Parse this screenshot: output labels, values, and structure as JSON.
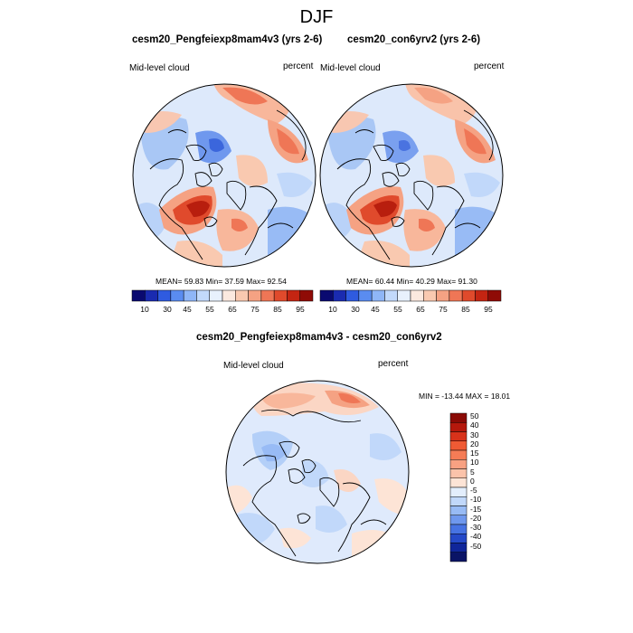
{
  "figure": {
    "title": "DJF"
  },
  "panels": [
    {
      "title": "cesm20_Pengfeiexp8mam4v3 (yrs 2-6)",
      "left_label": "Mid-level cloud",
      "right_label": "percent",
      "stats": "MEAN=  59.83  Min=  37.59  Max=  92.54"
    },
    {
      "title": "cesm20_con6yrv2 (yrs 2-6)",
      "left_label": "Mid-level cloud",
      "right_label": "percent",
      "stats": "MEAN=  60.44  Min=  40.29  Max=  91.30"
    },
    {
      "title": "cesm20_Pengfeiexp8mam4v3 - cesm20_con6yrv2",
      "left_label": "Mid-level cloud",
      "right_label": "percent",
      "stats": "MIN = -13.44 MAX =  18.01"
    }
  ],
  "colorbar_top": {
    "labels": [
      "10",
      "30",
      "45",
      "55",
      "65",
      "75",
      "85",
      "95"
    ],
    "colors": [
      "#0a0a70",
      "#1a2bb0",
      "#2f5be0",
      "#5a8cf0",
      "#8fb6f7",
      "#c2d9fb",
      "#e8f1fd",
      "#fbe9df",
      "#f9c9b0",
      "#f5a283",
      "#ef7656",
      "#e04a2c",
      "#c42512",
      "#8f0b06"
    ]
  },
  "colorbar_diff": {
    "labels": [
      "50",
      "40",
      "30",
      "20",
      "15",
      "10",
      "5",
      "0",
      "-5",
      "-10",
      "-15",
      "-20",
      "-30",
      "-40",
      "-50"
    ],
    "colors": [
      "#8a0a05",
      "#b5180c",
      "#d8321a",
      "#ef5a34",
      "#f57c56",
      "#f8a182",
      "#fbc3aa",
      "#fde4d6",
      "#e3eefc",
      "#c1d8fa",
      "#98bbf5",
      "#6f98ee",
      "#4773e3",
      "#2549c8",
      "#10269a",
      "#0a1466"
    ]
  }
}
